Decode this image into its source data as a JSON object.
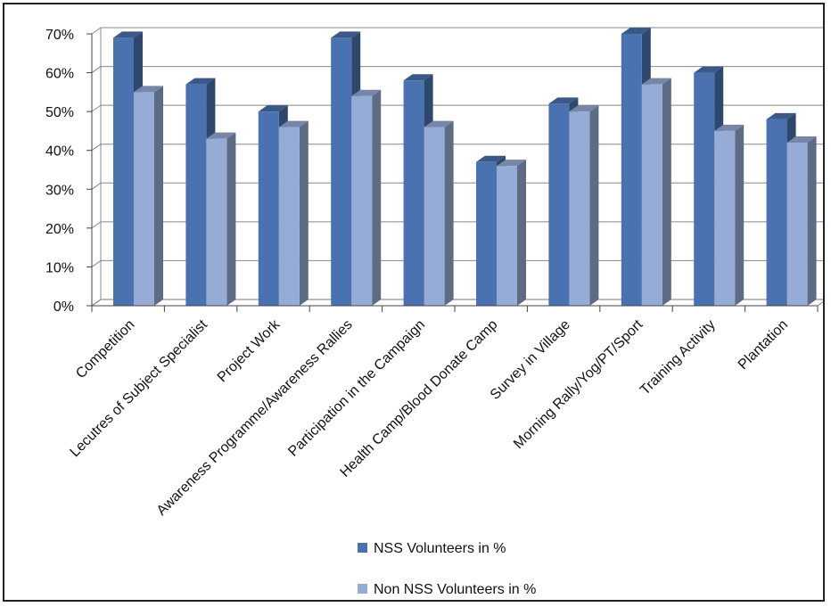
{
  "chart_data": {
    "type": "bar",
    "categories": [
      "Competition",
      "Lecutres of Subject Specialist",
      "Project Work",
      "Awareness Programme/Awareness Rallies",
      "Participation in the Campaign",
      "Health Camp/Blood Donate Camp",
      "Survey in Village",
      "Morning Rally/Yog/PT/Sport",
      "Training Activity",
      "Plantation"
    ],
    "series": [
      {
        "name": "NSS Volunteers in %",
        "values": [
          69,
          57,
          50,
          69,
          58,
          37,
          52,
          70,
          60,
          48
        ],
        "color": "#4a72b0"
      },
      {
        "name": "Non NSS Volunteers in %",
        "values": [
          55,
          43,
          46,
          54,
          46,
          36,
          50,
          57,
          45,
          42
        ],
        "color": "#96acd6"
      }
    ],
    "ylim": [
      0,
      70
    ],
    "yticks": [
      "0%",
      "10%",
      "20%",
      "30%",
      "40%",
      "50%",
      "60%",
      "70%"
    ],
    "grid": true,
    "legend": "bottom",
    "style": "3d-clustered-column"
  }
}
